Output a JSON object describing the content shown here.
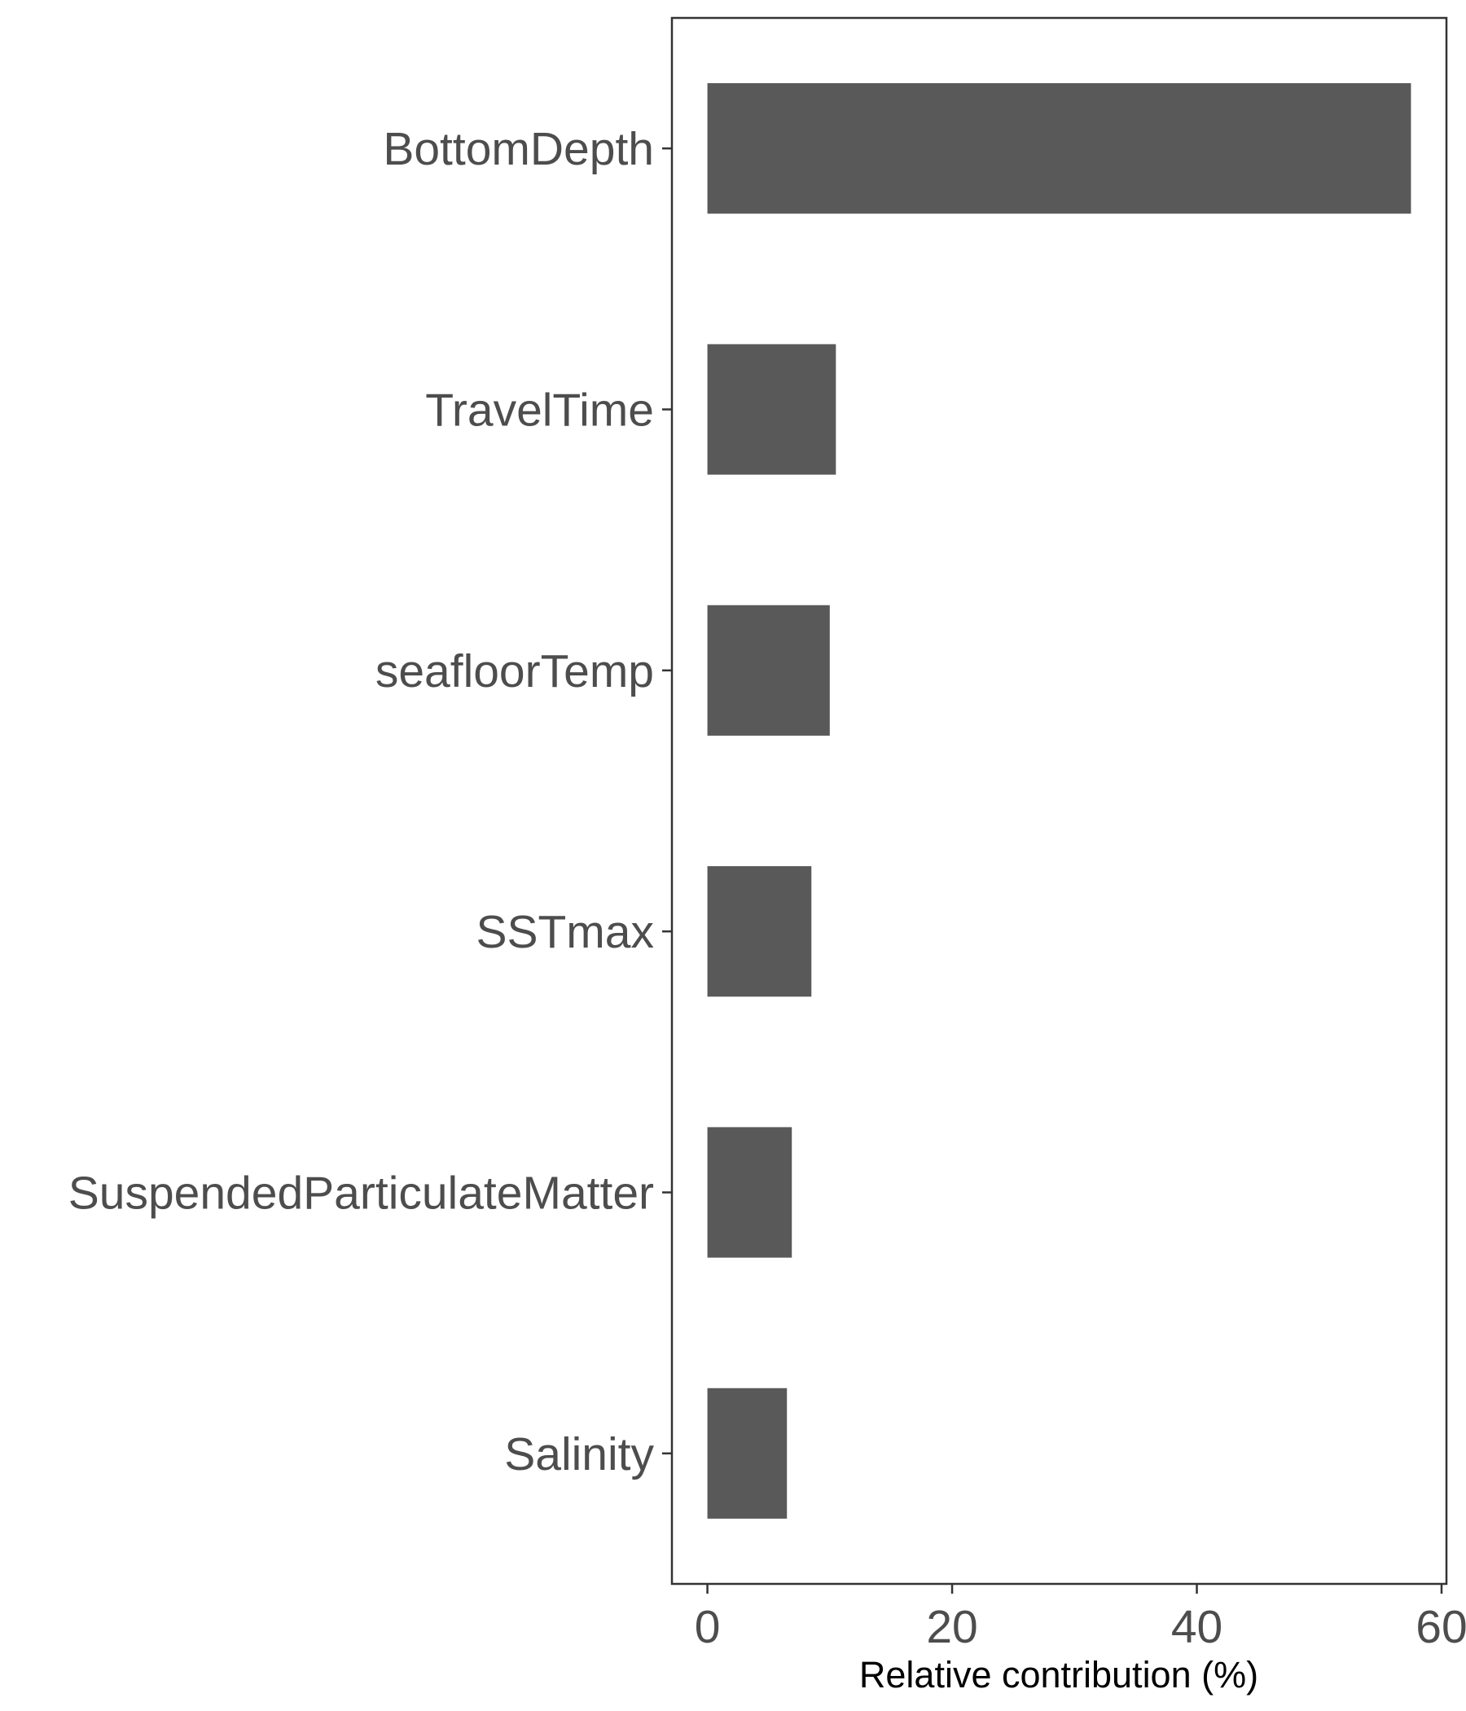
{
  "chart_data": {
    "type": "bar",
    "orientation": "horizontal",
    "categories": [
      "BottomDepth",
      "TravelTime",
      "seafloorTemp",
      "SSTmax",
      "SuspendedParticulateMatter",
      "Salinity"
    ],
    "values": [
      57.5,
      10.5,
      10.0,
      8.5,
      6.9,
      6.5
    ],
    "title": "",
    "xlabel": "Relative contribution (%)",
    "ylabel": "",
    "xlim": [
      -2.9,
      60.4
    ],
    "xticks": [
      0,
      20,
      40,
      60
    ],
    "xtick_labels": [
      "0",
      "20",
      "40",
      "60"
    ],
    "bar_color": "#595959",
    "grid": false,
    "legend": "none"
  }
}
